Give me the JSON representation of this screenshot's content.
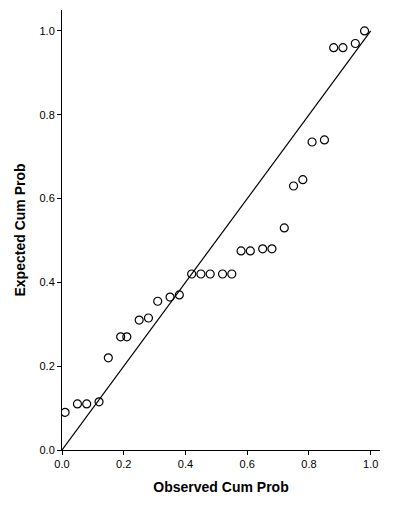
{
  "chart_data": {
    "type": "scatter",
    "x_label": "Observed Cum Prob",
    "y_label": "Expected Cum Prob",
    "xlim": [
      0,
      1.03
    ],
    "ylim": [
      0,
      1.05
    ],
    "xticks": [
      {
        "value": 0,
        "label": "0.0"
      },
      0.2,
      0.4,
      0.6,
      0.8,
      {
        "value": 1,
        "label": "1.0"
      }
    ],
    "yticks": [
      {
        "value": 0,
        "label": "0.0"
      },
      0.2,
      0.4,
      0.6,
      0.8,
      {
        "value": 1,
        "label": "1.0"
      }
    ],
    "grid": false,
    "series": [
      {
        "type": "scatter",
        "marker": "open circle",
        "color": "#000000",
        "x": [
          0.01,
          0.05,
          0.08,
          0.12,
          0.15,
          0.19,
          0.21,
          0.25,
          0.28,
          0.31,
          0.35,
          0.38,
          0.42,
          0.45,
          0.48,
          0.52,
          0.55,
          0.58,
          0.61,
          0.65,
          0.68,
          0.72,
          0.75,
          0.78,
          0.81,
          0.85,
          0.88,
          0.91,
          0.95,
          0.98
        ],
        "values": [
          0.09,
          0.11,
          0.11,
          0.115,
          0.22,
          0.27,
          0.27,
          0.31,
          0.315,
          0.355,
          0.365,
          0.37,
          0.42,
          0.42,
          0.42,
          0.42,
          0.42,
          0.475,
          0.475,
          0.48,
          0.48,
          0.53,
          0.63,
          0.645,
          0.735,
          0.74,
          0.96,
          0.96,
          0.97,
          1.0
        ]
      },
      {
        "type": "line",
        "line_style": "solid",
        "color": "#000000",
        "x": [
          0,
          1
        ],
        "values": [
          0,
          1
        ]
      }
    ]
  }
}
